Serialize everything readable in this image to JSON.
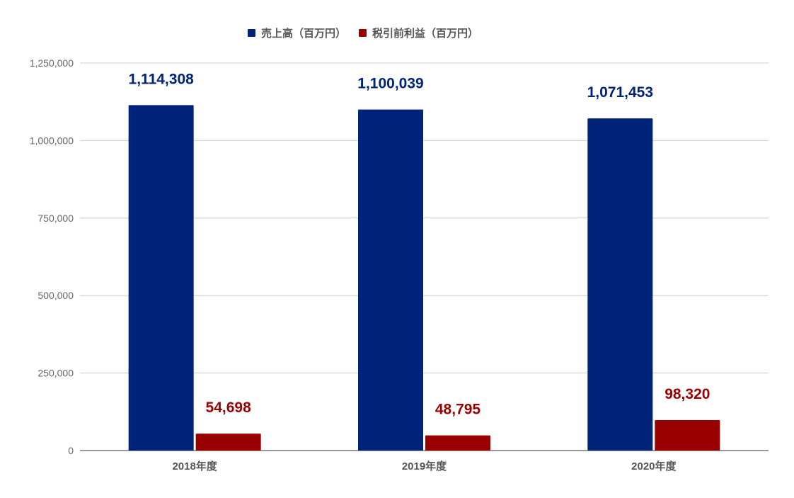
{
  "chart_data": {
    "type": "bar",
    "categories": [
      "2018年度",
      "2019年度",
      "2020年度"
    ],
    "series": [
      {
        "name": "売上高（百万円）",
        "values": [
          1114308,
          1100039,
          1071453
        ],
        "color": "#00237a"
      },
      {
        "name": "税引前利益（百万円）",
        "values": [
          54698,
          48795,
          98320
        ],
        "color": "#9b0000"
      }
    ],
    "data_labels": [
      [
        "1,114,308",
        "1,100,039",
        "1,071,453"
      ],
      [
        "54,698",
        "48,795",
        "98,320"
      ]
    ],
    "ylim": [
      0,
      1250000
    ],
    "yticks": [
      0,
      250000,
      500000,
      750000,
      1000000,
      1250000
    ],
    "ytick_labels": [
      "0",
      "250,000",
      "500,000",
      "750,000",
      "1,000,000",
      "1,250,000"
    ],
    "grid": true,
    "legend_position": "top-center",
    "title": "",
    "xlabel": "",
    "ylabel": ""
  }
}
